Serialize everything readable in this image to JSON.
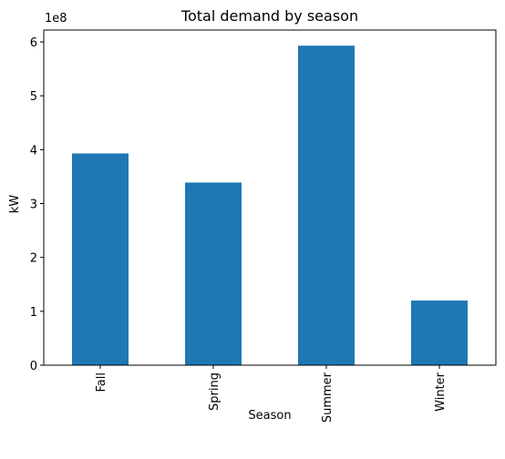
{
  "chart_data": {
    "type": "bar",
    "title": "Total demand by season",
    "xlabel": "Season",
    "ylabel": "kW",
    "y_offset_label": "1e8",
    "categories": [
      "Fall",
      "Spring",
      "Summer",
      "Winter"
    ],
    "values": [
      393000000,
      339000000,
      593000000,
      120000000
    ],
    "ylim": [
      0,
      622000000
    ],
    "yticks": [
      0,
      100000000,
      200000000,
      300000000,
      400000000,
      500000000,
      600000000
    ],
    "ytick_labels": [
      "0",
      "1",
      "2",
      "3",
      "4",
      "5",
      "6"
    ],
    "bar_color": "#1f77b4",
    "grid": false,
    "legend": "none"
  }
}
